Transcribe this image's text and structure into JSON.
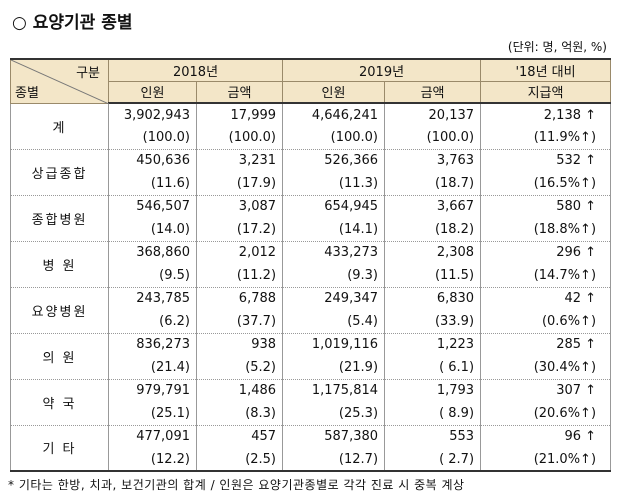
{
  "header": {
    "title": "○ 요양기관 종별",
    "unit": "(단위: 명, 억원, %)"
  },
  "table": {
    "corner_top": "구분",
    "corner_bottom": "종별",
    "year1": "2018년",
    "year2": "2019년",
    "change": "'18년 대비",
    "change_sub": "지급액",
    "subheads": [
      "인원",
      "금액",
      "인원",
      "금액"
    ],
    "rows": [
      {
        "name": "계",
        "main": [
          "3,902,943",
          "17,999",
          "4,646,241",
          "20,137",
          "2,138 ↑"
        ],
        "share": [
          "(100.0)",
          "(100.0)",
          "(100.0)",
          "(100.0)",
          "(11.9%↑)"
        ]
      },
      {
        "name": "상급종합",
        "main": [
          "450,636",
          "3,231",
          "526,366",
          "3,763",
          "532 ↑"
        ],
        "share": [
          "(11.6)",
          "(17.9)",
          "(11.3)",
          "(18.7)",
          "(16.5%↑)"
        ]
      },
      {
        "name": "종합병원",
        "main": [
          "546,507",
          "3,087",
          "654,945",
          "3,667",
          "580 ↑"
        ],
        "share": [
          "(14.0)",
          "(17.2)",
          "(14.1)",
          "(18.2)",
          "(18.8%↑)"
        ]
      },
      {
        "name": "병 원",
        "main": [
          "368,860",
          "2,012",
          "433,273",
          "2,308",
          "296 ↑"
        ],
        "share": [
          "(9.5)",
          "(11.2)",
          "(9.3)",
          "(11.5)",
          "(14.7%↑)"
        ]
      },
      {
        "name": "요양병원",
        "main": [
          "243,785",
          "6,788",
          "249,347",
          "6,830",
          "42 ↑"
        ],
        "share": [
          "(6.2)",
          "(37.7)",
          "(5.4)",
          "(33.9)",
          "(0.6%↑)"
        ]
      },
      {
        "name": "의 원",
        "main": [
          "836,273",
          "938",
          "1,019,116",
          "1,223",
          "285 ↑"
        ],
        "share": [
          "(21.4)",
          "(5.2)",
          "(21.9)",
          "( 6.1)",
          "(30.4%↑)"
        ]
      },
      {
        "name": "약 국",
        "main": [
          "979,791",
          "1,486",
          "1,175,814",
          "1,793",
          "307 ↑"
        ],
        "share": [
          "(25.1)",
          "(8.3)",
          "(25.3)",
          "( 8.9)",
          "(20.6%↑)"
        ]
      },
      {
        "name": "기 타",
        "main": [
          "477,091",
          "457",
          "587,380",
          "553",
          "96 ↑"
        ],
        "share": [
          "(12.2)",
          "(2.5)",
          "(12.7)",
          "( 2.7)",
          "(21.0%↑)"
        ]
      }
    ]
  },
  "footnote": "* 기타는 한방, 치과, 보건기관의 합계 / 인원은 요양기관종별로 각각 진료 시 중복 계상"
}
